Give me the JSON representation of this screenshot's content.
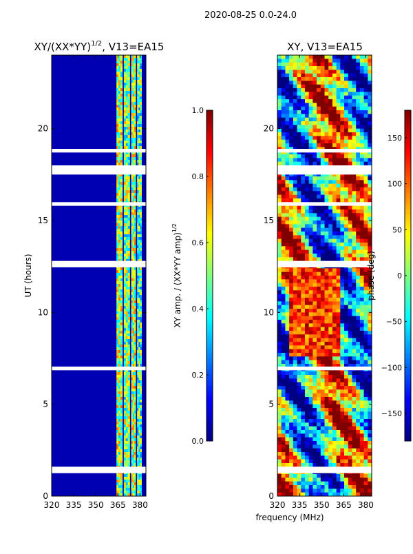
{
  "chart_data": {
    "type": "heatmap",
    "suptitle": "2020-08-25 0.0-24.0",
    "shared_xlabel": "frequency (MHz)",
    "panels": [
      {
        "id": "amp",
        "title_main": "XY/(XX*YY)",
        "title_sup": "1/2",
        "title_rest": ", V13=EA15",
        "ylabel": "UT (hours)",
        "xlim": [
          320,
          384
        ],
        "ylim": [
          0,
          24
        ],
        "xticks": [
          320,
          335,
          350,
          365,
          380
        ],
        "yticks": [
          0,
          5,
          10,
          15,
          20
        ],
        "colorbar": {
          "label_main": "XY amp. / (XX*YY amp)",
          "label_sup": "1/2",
          "range": [
            0.0,
            1.0
          ],
          "ticks": [
            "0.0",
            "0.2",
            "0.4",
            "0.6",
            "0.8",
            "1.0"
          ],
          "tick_values": [
            0.0,
            0.2,
            0.4,
            0.6,
            0.8,
            1.0
          ]
        }
      },
      {
        "id": "phase",
        "title_main": "XY, V13=EA15",
        "ylabel": "",
        "xlim": [
          320,
          384
        ],
        "ylim": [
          0,
          24
        ],
        "xticks": [
          320,
          335,
          350,
          365,
          380
        ],
        "yticks": [
          0,
          5,
          10,
          15,
          20
        ],
        "colorbar": {
          "label_main": "phase (deg)",
          "range": [
            -180,
            180
          ],
          "ticks": [
            "−150",
            "−100",
            "−50",
            "0",
            "50",
            "100",
            "150"
          ],
          "tick_values": [
            -150,
            -100,
            -50,
            0,
            50,
            100,
            150
          ]
        }
      }
    ],
    "flagged_ut_ranges": [
      [
        1.25,
        1.6
      ],
      [
        6.85,
        7.05
      ],
      [
        12.45,
        12.8
      ],
      [
        15.8,
        16.0
      ],
      [
        17.5,
        18.0
      ],
      [
        18.7,
        18.9
      ]
    ],
    "amp_bands": [
      {
        "freq": [
          364,
          368
        ],
        "level": 0.55
      },
      {
        "freq": [
          369,
          373
        ],
        "level": 0.5
      },
      {
        "freq": [
          374,
          377
        ],
        "level": 0.55
      },
      {
        "freq": [
          378,
          381
        ],
        "level": 0.45
      }
    ],
    "amp_background": 0.05,
    "colormap": "jet"
  }
}
